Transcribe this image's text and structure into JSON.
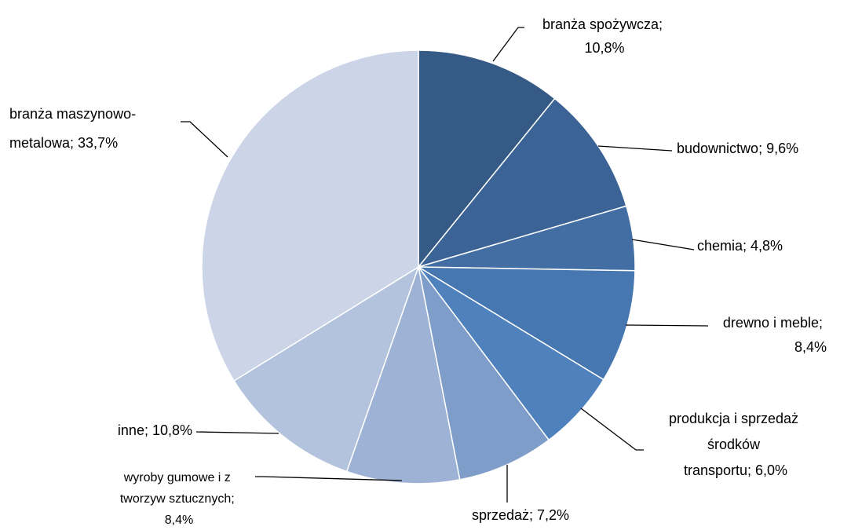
{
  "chart_data": {
    "type": "pie",
    "values": [
      10.8,
      9.6,
      4.8,
      8.4,
      6.0,
      7.2,
      8.4,
      10.8,
      33.7
    ],
    "value_labels": [
      "branża spożywcza; 10,8%",
      "budownictwo; 9,6%",
      "chemia; 4,8%",
      "drewno i meble; 8,4%",
      "produkcja i sprzedaż środków transportu; 6,0%",
      "sprzedaż; 7,2%",
      "wyroby gumowe i z tworzyw sztucznych; 8,4%",
      "inne; 10,8%",
      "branża maszynowo-metalowa; 33,7%"
    ],
    "colors": [
      "#355a86",
      "#3b6396",
      "#426ea3",
      "#4777b1",
      "#4f81bd",
      "#7f9dc9",
      "#9db2d4",
      "#b3c2dd",
      "#cbd5e7"
    ]
  }
}
